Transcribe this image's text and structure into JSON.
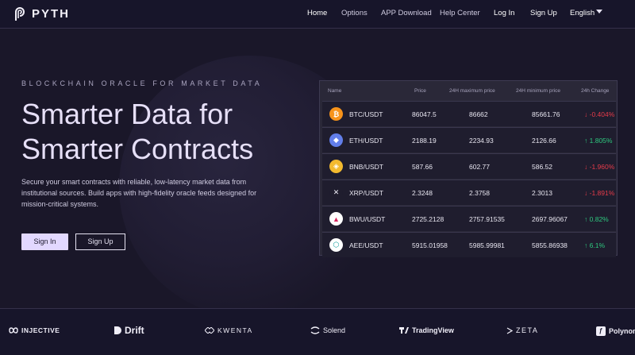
{
  "brand": {
    "name": "PYTH"
  },
  "nav": {
    "items": [
      {
        "label": "Home",
        "active": true
      },
      {
        "label": "Options"
      },
      {
        "label": "APP Download"
      },
      {
        "label": "Help Center"
      },
      {
        "label": "Log In"
      },
      {
        "label": "Sign Up"
      },
      {
        "label": "English"
      }
    ]
  },
  "hero": {
    "eyebrow": "BLOCKCHAIN ORACLE FOR MARKET DATA",
    "headline_line1": "Smarter Data for",
    "headline_line2": "Smarter Contracts",
    "description": "Secure your smart contracts with reliable, low-latency market data from institutional sources. Build apps with high-fidelity oracle feeds designed for mission-critical systems.",
    "sign_in": "Sign In",
    "sign_up": "Sign Up"
  },
  "table": {
    "headers": [
      "Name",
      "Price",
      "24H maximum price",
      "24H minimum price",
      "24h Change"
    ],
    "rows": [
      {
        "pair": "BTC/USDT",
        "price": "86047.5",
        "max": "86662",
        "min": "85661.76",
        "change": "-0.404%",
        "dir": "down",
        "icon": "btc-icon",
        "color": "#f7931a",
        "glyph": "₿"
      },
      {
        "pair": "ETH/USDT",
        "price": "2188.19",
        "max": "2234.93",
        "min": "2126.66",
        "change": "1.805%",
        "dir": "up",
        "icon": "eth-icon",
        "color": "#627eea",
        "glyph": "◆"
      },
      {
        "pair": "BNB/USDT",
        "price": "587.66",
        "max": "602.77",
        "min": "586.52",
        "change": "-1.960%",
        "dir": "down",
        "icon": "bnb-icon",
        "color": "#f3ba2f",
        "glyph": "◈"
      },
      {
        "pair": "XRP/USDT",
        "price": "2.3248",
        "max": "2.3758",
        "min": "2.3013",
        "change": "-1.891%",
        "dir": "down",
        "icon": "xrp-icon",
        "color": "#1f1d2e",
        "glyph": "✕"
      },
      {
        "pair": "BWU/USDT",
        "price": "2725.2128",
        "max": "2757.91535",
        "min": "2697.96067",
        "change": "0.82%",
        "dir": "up",
        "icon": "bwu-icon",
        "color": "#ffffff",
        "glyph": "▲"
      },
      {
        "pair": "AEE/USDT",
        "price": "5915.01958",
        "max": "5985.99981",
        "min": "5855.86938",
        "change": "6.1%",
        "dir": "up",
        "icon": "aee-icon",
        "color": "#ffffff",
        "glyph": "⬡"
      }
    ]
  },
  "partners": [
    {
      "name": "INJECTIVE",
      "icon": "injective-icon"
    },
    {
      "name": "Drift",
      "icon": "drift-icon"
    },
    {
      "name": "KWENTA",
      "icon": "kwenta-icon"
    },
    {
      "name": "Solend",
      "icon": "solend-icon"
    },
    {
      "name": "TradingView",
      "icon": "tradingview-icon"
    },
    {
      "name": "ZETA",
      "icon": "zeta-icon"
    },
    {
      "name": "Polynom",
      "icon": "polynomial-icon"
    }
  ],
  "colors": {
    "background": "#1a1729",
    "accent": "#e2d8ff",
    "up": "#2ec97f",
    "down": "#e63b4a"
  }
}
